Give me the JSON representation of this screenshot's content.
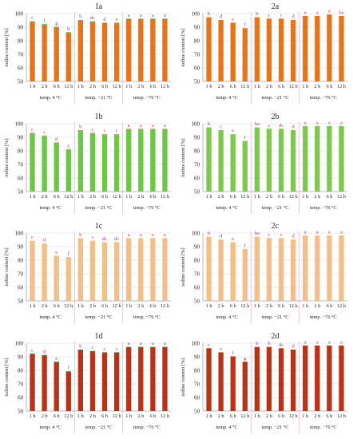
{
  "y_axis_label": "iodine content [%]",
  "x_tick_labels": [
    "1 h",
    "2 h",
    "6 h",
    "12 h",
    "1 h",
    "2 h",
    "6 h",
    "12 h",
    "1 h",
    "2 h",
    "6 h",
    "12 h"
  ],
  "group_labels": [
    "temp. 4 °C",
    "temp. −21 °C",
    "temp. −76 °C"
  ],
  "chart_data": [
    {
      "title": "1a",
      "type": "bar",
      "color": "#e8741a",
      "accent": "#3cc86a",
      "categories": [
        "1 h",
        "2 h",
        "6 h",
        "12 h",
        "1 h",
        "2 h",
        "6 h",
        "12 h",
        "1 h",
        "2 h",
        "6 h",
        "12 h"
      ],
      "values": [
        94,
        92,
        90,
        86,
        95,
        94,
        93,
        93,
        96,
        96,
        96,
        96
      ],
      "letters": [
        "c",
        "f",
        "g",
        "h",
        "b",
        "dc",
        "d",
        "e",
        "a",
        "a",
        "a",
        "a"
      ],
      "yticks": [
        50,
        60,
        70,
        80,
        90,
        100
      ],
      "ylim": [
        50,
        100
      ]
    },
    {
      "title": "2a",
      "type": "bar",
      "color": "#e8741a",
      "accent": "#e8741a",
      "categories": [
        "1 h",
        "2 h",
        "6 h",
        "12 h",
        "1 h",
        "2 h",
        "6 h",
        "12 h",
        "1 h",
        "2 h",
        "6 h",
        "12 h"
      ],
      "values": [
        97,
        95,
        93,
        89,
        97,
        96,
        96,
        95,
        98,
        98,
        99,
        98
      ],
      "letters": [
        "b",
        "d",
        "e",
        "f",
        "b",
        "c",
        "c",
        "d",
        "a",
        "a",
        "a",
        "ba"
      ],
      "yticks": [
        50,
        60,
        70,
        80,
        90,
        100
      ],
      "ylim": [
        50,
        100
      ]
    },
    {
      "title": "1b",
      "type": "bar",
      "color": "#6cc744",
      "accent": "#f08a78",
      "categories": [
        "1 h",
        "2 h",
        "6 h",
        "12 h",
        "1 h",
        "2 h",
        "6 h",
        "12 h",
        "1 h",
        "2 h",
        "6 h",
        "12 h"
      ],
      "values": [
        93,
        91,
        86,
        81,
        95,
        93,
        92,
        92,
        96,
        96,
        96,
        96
      ],
      "letters": [
        "c",
        "c",
        "d",
        "e",
        "b",
        "c",
        "c",
        "c",
        "a",
        "a",
        "a",
        "a"
      ],
      "yticks": [
        50,
        60,
        70,
        80,
        90,
        100
      ],
      "ylim": [
        50,
        100
      ]
    },
    {
      "title": "2b",
      "type": "bar",
      "color": "#7ec850",
      "accent": "#7ec850",
      "categories": [
        "1 h",
        "2 h",
        "6 h",
        "12 h",
        "1 h",
        "2 h",
        "6 h",
        "12 h",
        "1 h",
        "2 h",
        "6 h",
        "12 h"
      ],
      "values": [
        97,
        95,
        92,
        87,
        97,
        96,
        96,
        95,
        98,
        98,
        98,
        98
      ],
      "letters": [
        "b",
        "c",
        "e",
        "f",
        "ba",
        "c",
        "dc",
        "d",
        "a",
        "a",
        "a",
        "a"
      ],
      "yticks": [
        50,
        60,
        70,
        80,
        90,
        100
      ],
      "ylim": [
        50,
        100
      ]
    },
    {
      "title": "1c",
      "type": "bar",
      "color": "#f2bf8a",
      "accent": "#f2bf8a",
      "categories": [
        "1 h",
        "2 h",
        "6 h",
        "12 h",
        "1 h",
        "2 h",
        "6 h",
        "12 h",
        "1 h",
        "2 h",
        "6 h",
        "12 h"
      ],
      "values": [
        94,
        92,
        83,
        82,
        96,
        94,
        93,
        93,
        96,
        96,
        96,
        96
      ],
      "letters": [
        "c",
        "d",
        "e",
        "f",
        "b",
        "c",
        "dc",
        "dc",
        "a",
        "a",
        "a",
        "a"
      ],
      "yticks": [
        50,
        60,
        70,
        80,
        90,
        100
      ],
      "ylim": [
        50,
        100
      ]
    },
    {
      "title": "2c",
      "type": "bar",
      "color": "#f2bf8a",
      "accent": "#f2bf8a",
      "categories": [
        "1 h",
        "2 h",
        "6 h",
        "12 h",
        "1 h",
        "2 h",
        "6 h",
        "12 h",
        "1 h",
        "2 h",
        "6 h",
        "12 h"
      ],
      "values": [
        97,
        95,
        93,
        88,
        97,
        96,
        96,
        95,
        98,
        98,
        98,
        98
      ],
      "letters": [
        "b",
        "d",
        "e",
        "f",
        "ba",
        "c",
        "c",
        "d",
        "a",
        "a",
        "a",
        "a"
      ],
      "yticks": [
        50,
        60,
        70,
        80,
        90,
        100
      ],
      "ylim": [
        50,
        100
      ]
    },
    {
      "title": "1d",
      "type": "bar",
      "color": "#b83318",
      "accent": "#1a8a3a",
      "categories": [
        "1 h",
        "2 h",
        "6 h",
        "12 h",
        "1 h",
        "2 h",
        "6 h",
        "12 h",
        "1 h",
        "2 h",
        "6 h",
        "12 h"
      ],
      "values": [
        92,
        91,
        86,
        79,
        95,
        94,
        93,
        93,
        97,
        97,
        97,
        97
      ],
      "letters": [
        "c",
        "d",
        "e",
        "f",
        "b",
        "c",
        "c",
        "c",
        "a",
        "a",
        "a",
        "a"
      ],
      "yticks": [
        50,
        60,
        70,
        80,
        90,
        100
      ],
      "ylim": [
        50,
        100
      ]
    },
    {
      "title": "2d",
      "type": "bar",
      "color": "#b83318",
      "accent": "#b83318",
      "categories": [
        "1 h",
        "2 h",
        "6 h",
        "12 h",
        "1 h",
        "2 h",
        "6 h",
        "12 h",
        "1 h",
        "2 h",
        "6 h",
        "12 h"
      ],
      "values": [
        96,
        93,
        90,
        86,
        97,
        97,
        96,
        95,
        98,
        98,
        98,
        98
      ],
      "letters": [
        "c",
        "e",
        "f",
        "g",
        "b",
        "b",
        "dc",
        "d",
        "a",
        "a",
        "a",
        "a"
      ],
      "yticks": [
        50,
        60,
        70,
        80,
        90,
        100
      ],
      "ylim": [
        50,
        100
      ]
    }
  ]
}
